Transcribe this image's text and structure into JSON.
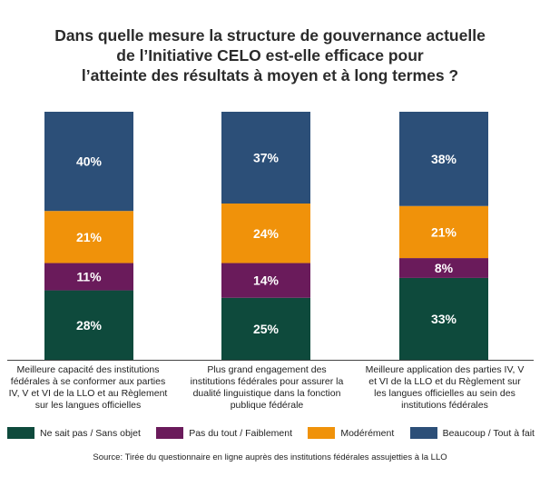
{
  "chart_data": {
    "type": "bar",
    "stacked": true,
    "title_lines": [
      "Dans quelle mesure la structure de gouvernance actuelle",
      "de l’Initiative CELO est-elle efficace pour",
      "l’atteinte des résultats à moyen et à long termes ?"
    ],
    "categories": [
      "Meilleure capacité des institutions fédérales à se conformer aux parties IV, V et VI de la LLO et au Règlement sur les langues officielles",
      "Plus grand engagement des institutions fédérales pour assurer la dualité linguistique dans la fonction publique fédérale",
      "Meilleure application des parties IV, V et VI de la LLO et du Règlement sur les langues officielles au sein des institutions fédérales"
    ],
    "series": [
      {
        "name": "Ne sait pas / Sans objet",
        "color": "#0e4a3c",
        "values": [
          28,
          25,
          33
        ],
        "labels": [
          "28%",
          "25%",
          "33%"
        ]
      },
      {
        "name": "Pas du tout / Faiblement",
        "color": "#6a1b5b",
        "values": [
          11,
          14,
          8
        ],
        "labels": [
          "11%",
          "14%",
          "8%"
        ]
      },
      {
        "name": "Modérément",
        "color": "#f0920a",
        "values": [
          21,
          24,
          21
        ],
        "labels": [
          "21%",
          "24%",
          "21%"
        ]
      },
      {
        "name": "Beaucoup / Tout à fait",
        "color": "#2c4f78",
        "values": [
          40,
          37,
          38
        ],
        "labels": [
          "40%",
          "37%",
          "38%"
        ]
      }
    ],
    "ylim": [
      0,
      100
    ],
    "legend_position": "bottom",
    "grid": false,
    "source": "Source: Tirée du questionnaire en ligne auprès des institutions fédérales assujetties à la LLO"
  }
}
